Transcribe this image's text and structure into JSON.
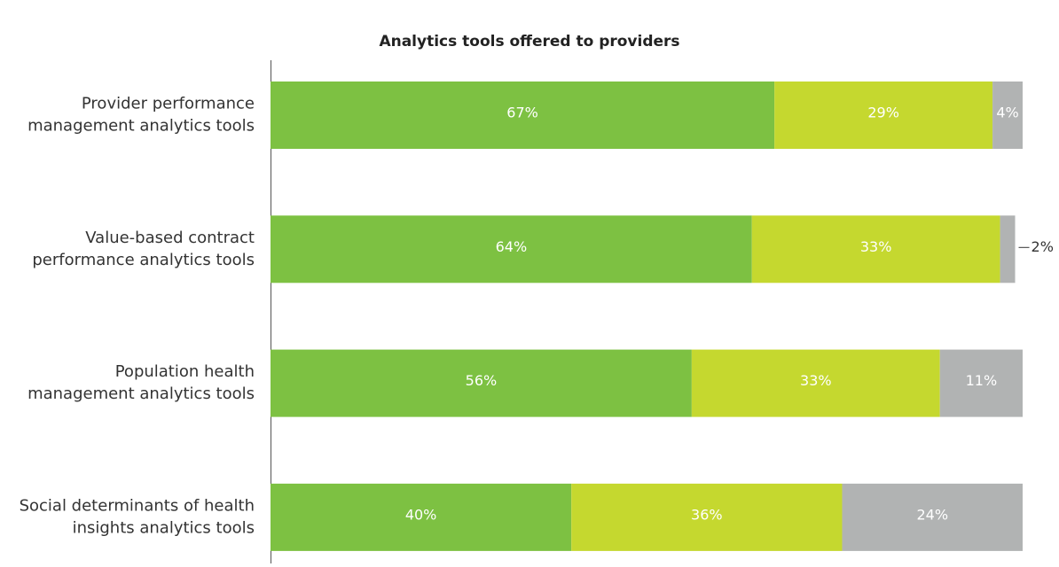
{
  "chart_data": {
    "type": "stacked_bar_horizontal",
    "title": "Analytics tools offered to providers",
    "categories": [
      "Provider performance\nmanagement analytics tools",
      "Value-based contract\nperformance analytics tools",
      "Population health\nmanagement analytics tools",
      "Social determinants of health\ninsights analytics tools"
    ],
    "xlim": [
      0,
      100
    ],
    "series": [
      {
        "color": "#7dc142",
        "values": [
          67,
          64,
          56,
          40
        ],
        "value_labels": [
          "67%",
          "64%",
          "56%",
          "40%"
        ]
      },
      {
        "color": "#c5d82f",
        "values": [
          29,
          33,
          33,
          36
        ],
        "value_labels": [
          "29%",
          "33%",
          "33%",
          "36%"
        ]
      },
      {
        "color": "#b1b3b3",
        "values": [
          4,
          2,
          11,
          24
        ],
        "value_labels": [
          "4%",
          "2%",
          "11%",
          "24%"
        ]
      }
    ]
  }
}
